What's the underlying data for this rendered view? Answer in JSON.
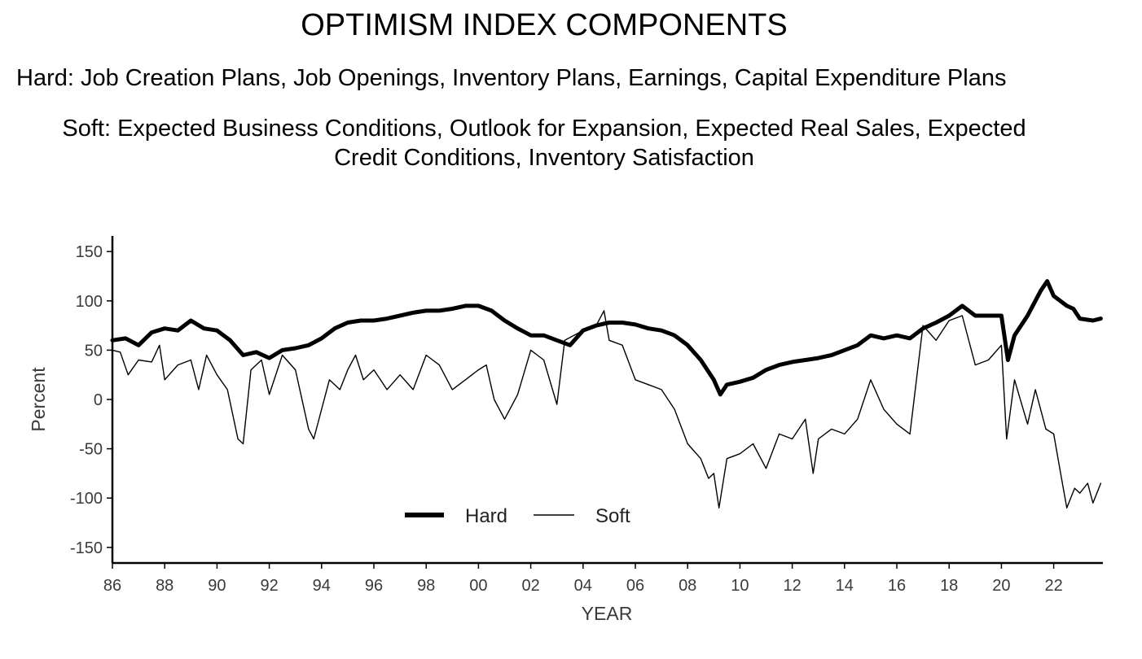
{
  "header": {
    "title": "OPTIMISM INDEX COMPONENTS",
    "hard_description": "Hard: Job Creation Plans, Job Openings, Inventory Plans, Earnings, Capital Expenditure Plans",
    "soft_description_line1": "Soft: Expected Business Conditions, Outlook for Expansion, Expected Real Sales, Expected",
    "soft_description_line2": "Credit Conditions, Inventory Satisfaction"
  },
  "chart_data": {
    "type": "line",
    "xlabel": "YEAR",
    "ylabel": "Percent",
    "xlim": [
      1986,
      2023.9
    ],
    "ylim": [
      -160,
      160
    ],
    "x_ticks": [
      {
        "value": 1986,
        "label": "86"
      },
      {
        "value": 1988,
        "label": "88"
      },
      {
        "value": 1990,
        "label": "90"
      },
      {
        "value": 1992,
        "label": "92"
      },
      {
        "value": 1994,
        "label": "94"
      },
      {
        "value": 1996,
        "label": "96"
      },
      {
        "value": 1998,
        "label": "98"
      },
      {
        "value": 2000,
        "label": "00"
      },
      {
        "value": 2002,
        "label": "02"
      },
      {
        "value": 2004,
        "label": "04"
      },
      {
        "value": 2006,
        "label": "06"
      },
      {
        "value": 2008,
        "label": "08"
      },
      {
        "value": 2010,
        "label": "10"
      },
      {
        "value": 2012,
        "label": "12"
      },
      {
        "value": 2014,
        "label": "14"
      },
      {
        "value": 2016,
        "label": "16"
      },
      {
        "value": 2018,
        "label": "18"
      },
      {
        "value": 2020,
        "label": "20"
      },
      {
        "value": 2022,
        "label": "22"
      }
    ],
    "y_ticks": [
      {
        "value": 150,
        "label": "150"
      },
      {
        "value": 100,
        "label": "100"
      },
      {
        "value": 50,
        "label": "50"
      },
      {
        "value": 0,
        "label": "0"
      },
      {
        "value": -50,
        "label": "-50"
      },
      {
        "value": -100,
        "label": "-100"
      },
      {
        "value": -150,
        "label": "-150"
      }
    ],
    "grid": false,
    "legend_position": "bottom-center",
    "series": [
      {
        "name": "Hard",
        "style": "thick",
        "color": "#000000",
        "points": [
          [
            1986.0,
            60
          ],
          [
            1986.5,
            62
          ],
          [
            1987.0,
            55
          ],
          [
            1987.5,
            68
          ],
          [
            1988.0,
            72
          ],
          [
            1988.5,
            70
          ],
          [
            1989.0,
            80
          ],
          [
            1989.5,
            72
          ],
          [
            1990.0,
            70
          ],
          [
            1990.5,
            60
          ],
          [
            1991.0,
            45
          ],
          [
            1991.5,
            48
          ],
          [
            1992.0,
            42
          ],
          [
            1992.5,
            50
          ],
          [
            1993.0,
            52
          ],
          [
            1993.5,
            55
          ],
          [
            1994.0,
            62
          ],
          [
            1994.5,
            72
          ],
          [
            1995.0,
            78
          ],
          [
            1995.5,
            80
          ],
          [
            1996.0,
            80
          ],
          [
            1996.5,
            82
          ],
          [
            1997.0,
            85
          ],
          [
            1997.5,
            88
          ],
          [
            1998.0,
            90
          ],
          [
            1998.5,
            90
          ],
          [
            1999.0,
            92
          ],
          [
            1999.5,
            95
          ],
          [
            2000.0,
            95
          ],
          [
            2000.5,
            90
          ],
          [
            2001.0,
            80
          ],
          [
            2001.5,
            72
          ],
          [
            2002.0,
            65
          ],
          [
            2002.5,
            65
          ],
          [
            2003.0,
            60
          ],
          [
            2003.5,
            55
          ],
          [
            2004.0,
            70
          ],
          [
            2004.5,
            75
          ],
          [
            2005.0,
            78
          ],
          [
            2005.5,
            78
          ],
          [
            2006.0,
            76
          ],
          [
            2006.5,
            72
          ],
          [
            2007.0,
            70
          ],
          [
            2007.5,
            65
          ],
          [
            2008.0,
            55
          ],
          [
            2008.5,
            40
          ],
          [
            2009.0,
            20
          ],
          [
            2009.25,
            5
          ],
          [
            2009.5,
            15
          ],
          [
            2010.0,
            18
          ],
          [
            2010.5,
            22
          ],
          [
            2011.0,
            30
          ],
          [
            2011.5,
            35
          ],
          [
            2012.0,
            38
          ],
          [
            2012.5,
            40
          ],
          [
            2013.0,
            42
          ],
          [
            2013.5,
            45
          ],
          [
            2014.0,
            50
          ],
          [
            2014.5,
            55
          ],
          [
            2015.0,
            65
          ],
          [
            2015.5,
            62
          ],
          [
            2016.0,
            65
          ],
          [
            2016.5,
            62
          ],
          [
            2017.0,
            72
          ],
          [
            2017.5,
            78
          ],
          [
            2018.0,
            85
          ],
          [
            2018.5,
            95
          ],
          [
            2019.0,
            85
          ],
          [
            2019.5,
            85
          ],
          [
            2020.0,
            85
          ],
          [
            2020.25,
            40
          ],
          [
            2020.5,
            65
          ],
          [
            2021.0,
            85
          ],
          [
            2021.5,
            110
          ],
          [
            2021.75,
            120
          ],
          [
            2022.0,
            105
          ],
          [
            2022.5,
            95
          ],
          [
            2022.75,
            92
          ],
          [
            2023.0,
            82
          ],
          [
            2023.5,
            80
          ],
          [
            2023.8,
            82
          ]
        ]
      },
      {
        "name": "Soft",
        "style": "thin",
        "color": "#000000",
        "points": [
          [
            1986.0,
            50
          ],
          [
            1986.3,
            48
          ],
          [
            1986.6,
            25
          ],
          [
            1987.0,
            40
          ],
          [
            1987.5,
            38
          ],
          [
            1987.8,
            55
          ],
          [
            1988.0,
            20
          ],
          [
            1988.5,
            35
          ],
          [
            1989.0,
            40
          ],
          [
            1989.3,
            10
          ],
          [
            1989.6,
            45
          ],
          [
            1990.0,
            25
          ],
          [
            1990.4,
            10
          ],
          [
            1990.8,
            -40
          ],
          [
            1991.0,
            -45
          ],
          [
            1991.3,
            30
          ],
          [
            1991.7,
            40
          ],
          [
            1992.0,
            5
          ],
          [
            1992.5,
            45
          ],
          [
            1993.0,
            30
          ],
          [
            1993.5,
            -30
          ],
          [
            1993.7,
            -40
          ],
          [
            1994.0,
            -10
          ],
          [
            1994.3,
            20
          ],
          [
            1994.7,
            10
          ],
          [
            1995.0,
            30
          ],
          [
            1995.3,
            45
          ],
          [
            1995.6,
            20
          ],
          [
            1996.0,
            30
          ],
          [
            1996.5,
            10
          ],
          [
            1997.0,
            25
          ],
          [
            1997.5,
            10
          ],
          [
            1998.0,
            45
          ],
          [
            1998.5,
            35
          ],
          [
            1999.0,
            10
          ],
          [
            1999.5,
            20
          ],
          [
            2000.0,
            30
          ],
          [
            2000.3,
            35
          ],
          [
            2000.6,
            0
          ],
          [
            2001.0,
            -20
          ],
          [
            2001.5,
            5
          ],
          [
            2002.0,
            50
          ],
          [
            2002.5,
            40
          ],
          [
            2003.0,
            -5
          ],
          [
            2003.3,
            60
          ],
          [
            2004.0,
            70
          ],
          [
            2004.5,
            75
          ],
          [
            2004.8,
            90
          ],
          [
            2005.0,
            60
          ],
          [
            2005.5,
            55
          ],
          [
            2006.0,
            20
          ],
          [
            2006.5,
            15
          ],
          [
            2007.0,
            10
          ],
          [
            2007.5,
            -10
          ],
          [
            2008.0,
            -45
          ],
          [
            2008.5,
            -60
          ],
          [
            2008.8,
            -80
          ],
          [
            2009.0,
            -75
          ],
          [
            2009.2,
            -110
          ],
          [
            2009.5,
            -60
          ],
          [
            2010.0,
            -55
          ],
          [
            2010.5,
            -45
          ],
          [
            2011.0,
            -70
          ],
          [
            2011.5,
            -35
          ],
          [
            2012.0,
            -40
          ],
          [
            2012.5,
            -20
          ],
          [
            2012.8,
            -75
          ],
          [
            2013.0,
            -40
          ],
          [
            2013.5,
            -30
          ],
          [
            2014.0,
            -35
          ],
          [
            2014.5,
            -20
          ],
          [
            2015.0,
            20
          ],
          [
            2015.5,
            -10
          ],
          [
            2016.0,
            -25
          ],
          [
            2016.5,
            -35
          ],
          [
            2017.0,
            75
          ],
          [
            2017.5,
            60
          ],
          [
            2018.0,
            80
          ],
          [
            2018.5,
            85
          ],
          [
            2019.0,
            35
          ],
          [
            2019.5,
            40
          ],
          [
            2020.0,
            55
          ],
          [
            2020.2,
            -40
          ],
          [
            2020.5,
            20
          ],
          [
            2021.0,
            -25
          ],
          [
            2021.3,
            10
          ],
          [
            2021.7,
            -30
          ],
          [
            2022.0,
            -35
          ],
          [
            2022.3,
            -80
          ],
          [
            2022.5,
            -110
          ],
          [
            2022.8,
            -90
          ],
          [
            2023.0,
            -95
          ],
          [
            2023.3,
            -85
          ],
          [
            2023.5,
            -105
          ],
          [
            2023.8,
            -85
          ]
        ]
      }
    ]
  }
}
